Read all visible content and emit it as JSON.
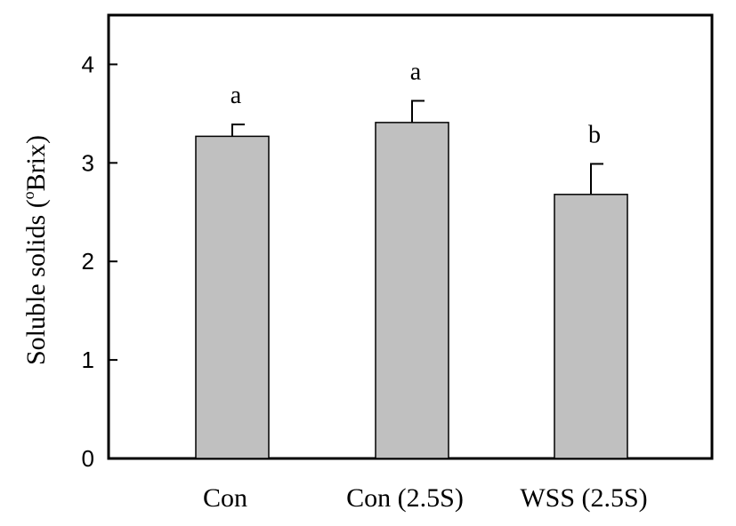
{
  "chart_data": {
    "type": "bar",
    "categories": [
      "Con",
      "Con (2.5S)",
      "WSS (2.5S)"
    ],
    "values": [
      3.27,
      3.41,
      2.68
    ],
    "errors": [
      0.12,
      0.22,
      0.31
    ],
    "significance": [
      "a",
      "a",
      "b"
    ],
    "ylabel_main": "Soluble solids (",
    "ylabel_super": "o",
    "ylabel_unit": "Brix)",
    "xlabel": "",
    "ylim": [
      0,
      4.5
    ],
    "yticks": [
      0,
      1,
      2,
      3,
      4
    ],
    "grid": false,
    "legend": "none",
    "colors": {
      "bar_fill": "#c0c0c0",
      "bar_stroke": "#000000",
      "axis": "#000000"
    }
  }
}
